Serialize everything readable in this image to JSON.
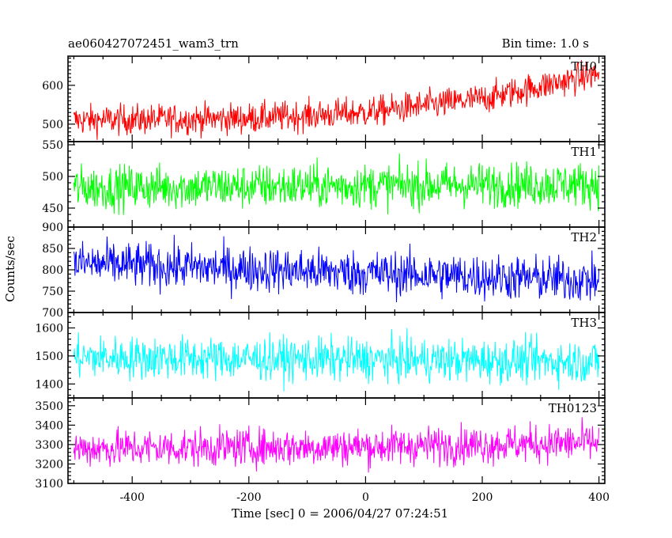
{
  "chart_data": {
    "type": "line",
    "title_left": "ae060427072451_wam3_trn",
    "title_right": "Bin time: 1.0 s",
    "xlabel": "Time [sec] 0 = 2006/04/27 07:24:51",
    "ylabel": "Counts/sec",
    "xlim": [
      -510,
      410
    ],
    "x_ticks": [
      -400,
      -200,
      0,
      200,
      400
    ],
    "x_range": [
      -500,
      400
    ],
    "bin_time": 1.0,
    "panels": [
      {
        "name": "TH0",
        "color": "#ff0000",
        "ylim": [
          455,
          675
        ],
        "y_ticks": [
          500,
          600
        ],
        "trend": [
          [
            -500,
            510
          ],
          [
            -200,
            515
          ],
          [
            0,
            530
          ],
          [
            200,
            565
          ],
          [
            400,
            630
          ]
        ],
        "noise": 28
      },
      {
        "name": "TH1",
        "color": "#00ff00",
        "ylim": [
          420,
          555
        ],
        "y_ticks": [
          450,
          500,
          550
        ],
        "trend": [
          [
            -500,
            482
          ],
          [
            400,
            488
          ]
        ],
        "noise": 25
      },
      {
        "name": "TH2",
        "color": "#0000ff",
        "ylim": [
          700,
          900
        ],
        "y_ticks": [
          700,
          750,
          800,
          850,
          900
        ],
        "trend": [
          [
            -500,
            815
          ],
          [
            400,
            775
          ]
        ],
        "noise": 38
      },
      {
        "name": "TH3",
        "color": "#00ffff",
        "ylim": [
          1350,
          1655
        ],
        "y_ticks": [
          1400,
          1500,
          1600
        ],
        "trend": [
          [
            -500,
            1495
          ],
          [
            400,
            1480
          ]
        ],
        "noise": 55
      },
      {
        "name": "TH0123",
        "color": "#ff00ff",
        "ylim": [
          3100,
          3540
        ],
        "y_ticks": [
          3100,
          3200,
          3300,
          3400,
          3500
        ],
        "trend": [
          [
            -500,
            3280
          ],
          [
            0,
            3290
          ],
          [
            400,
            3310
          ]
        ],
        "noise": 70
      }
    ]
  }
}
